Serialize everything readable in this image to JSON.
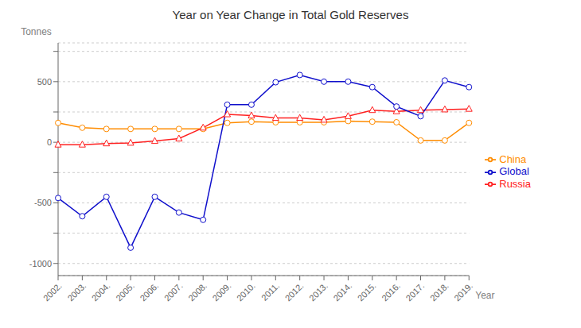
{
  "chart_data": {
    "type": "line",
    "title": "Year on Year Change in Total Gold Reserves",
    "xlabel": "Year",
    "ylabel": "Tonnes",
    "categories": [
      "2002.",
      "2003.",
      "2004.",
      "2005.",
      "2006.",
      "2007.",
      "2008.",
      "2009.",
      "2010.",
      "2011.",
      "2012.",
      "2013.",
      "2014.",
      "2015.",
      "2016.",
      "2017.",
      "2018.",
      "2019."
    ],
    "series": [
      {
        "name": "China",
        "color": "#FF8C00",
        "marker": "circle",
        "values": [
          160,
          120,
          110,
          110,
          110,
          110,
          110,
          160,
          170,
          165,
          165,
          165,
          175,
          170,
          165,
          15,
          15,
          160
        ]
      },
      {
        "name": "Russia",
        "color": "#FF2020",
        "marker": "triangle",
        "values": [
          -20,
          -20,
          -10,
          -5,
          10,
          30,
          120,
          230,
          220,
          200,
          200,
          185,
          215,
          265,
          255,
          265,
          270,
          275
        ]
      },
      {
        "name": "Global",
        "color": "#1010CC",
        "marker": "circle",
        "values": [
          -460,
          -610,
          -450,
          -870,
          -450,
          -580,
          -640,
          310,
          310,
          495,
          555,
          500,
          500,
          455,
          295,
          215,
          510,
          455
        ]
      }
    ],
    "ylim": [
      -1100,
      820
    ],
    "yticks": [
      -1000,
      {
        "value": -750,
        "label": null
      },
      -500,
      {
        "value": -250,
        "label": null
      },
      0,
      {
        "value": 250,
        "label": null
      },
      500,
      {
        "value": 750,
        "label": null
      }
    ],
    "grid": true,
    "legend": "right"
  }
}
